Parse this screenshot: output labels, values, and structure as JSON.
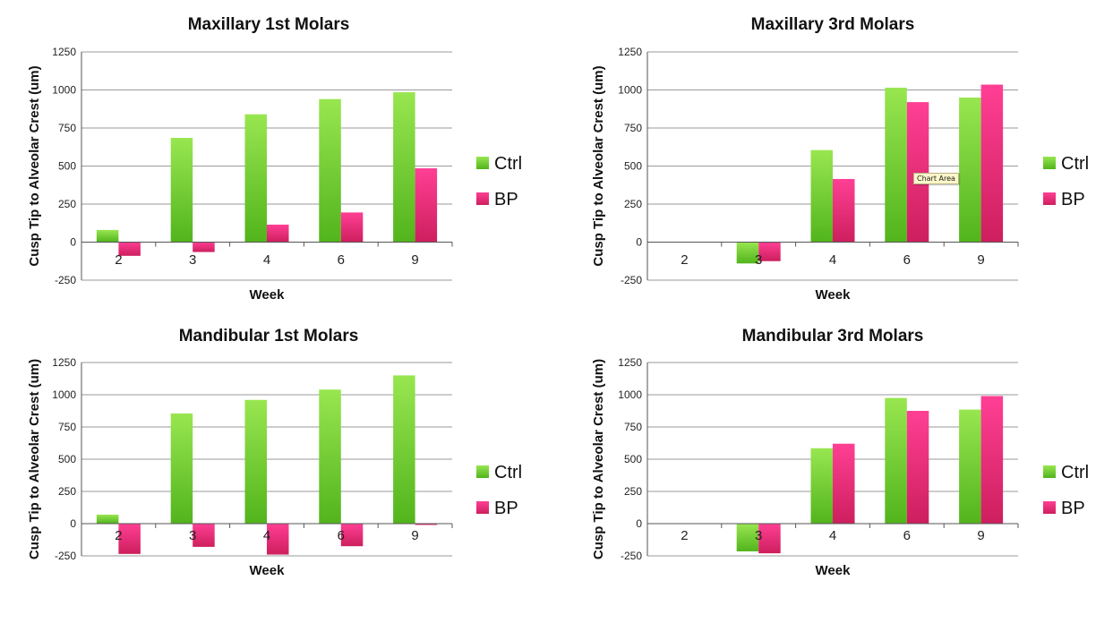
{
  "colors": {
    "ctrl_light": "#98e650",
    "ctrl_dark": "#52b41c",
    "bp_light": "#ff3f94",
    "bp_dark": "#cd1f5e"
  },
  "tooltip_text": "Chart Area",
  "chart_data": [
    {
      "type": "bar",
      "title": "Maxillary 1st Molars",
      "xlabel": "Week",
      "ylabel": "Cusp Tip to Alveolar Crest (um)",
      "categories": [
        "2",
        "3",
        "4",
        "6",
        "9"
      ],
      "ylim": [
        -250,
        1250
      ],
      "yticks": [
        "1250",
        "1000",
        "750",
        "500",
        "250",
        "0",
        "-250"
      ],
      "legend_position": "right",
      "series": [
        {
          "name": "Ctrl",
          "values": [
            80,
            685,
            840,
            940,
            985
          ]
        },
        {
          "name": "BP",
          "values": [
            -90,
            -65,
            115,
            195,
            485
          ]
        }
      ]
    },
    {
      "type": "bar",
      "title": "Maxillary 3rd Molars",
      "xlabel": "Week",
      "ylabel": "Cusp Tip to Alveolar Crest (um)",
      "categories": [
        "2",
        "3",
        "4",
        "6",
        "9"
      ],
      "ylim": [
        -250,
        1250
      ],
      "yticks": [
        "1250",
        "1000",
        "750",
        "500",
        "250",
        "0",
        "-250"
      ],
      "legend_position": "right",
      "series": [
        {
          "name": "Ctrl",
          "values": [
            0,
            -140,
            605,
            1015,
            950
          ]
        },
        {
          "name": "BP",
          "values": [
            0,
            -125,
            415,
            920,
            1035
          ]
        }
      ]
    },
    {
      "type": "bar",
      "title": "Mandibular 1st Molars",
      "xlabel": "Week",
      "ylabel": "Cusp Tip to Alveolar Crest (um)",
      "categories": [
        "2",
        "3",
        "4",
        "6",
        "9"
      ],
      "ylim": [
        -250,
        1250
      ],
      "yticks": [
        "1250",
        "1000",
        "750",
        "500",
        "250",
        "0",
        "-250"
      ],
      "legend_position": "right",
      "series": [
        {
          "name": "Ctrl",
          "values": [
            70,
            855,
            960,
            1040,
            1150
          ]
        },
        {
          "name": "BP",
          "values": [
            -235,
            -180,
            -240,
            -175,
            -10
          ]
        }
      ]
    },
    {
      "type": "bar",
      "title": "Mandibular 3rd Molars",
      "xlabel": "Week",
      "ylabel": "Cusp Tip to Alveolar Crest (um)",
      "categories": [
        "2",
        "3",
        "4",
        "6",
        "9"
      ],
      "ylim": [
        -250,
        1250
      ],
      "yticks": [
        "1250",
        "1000",
        "750",
        "500",
        "250",
        "0",
        "-250"
      ],
      "legend_position": "right",
      "series": [
        {
          "name": "Ctrl",
          "values": [
            0,
            -215,
            585,
            975,
            885
          ]
        },
        {
          "name": "BP",
          "values": [
            0,
            -230,
            620,
            875,
            990
          ]
        }
      ]
    }
  ]
}
